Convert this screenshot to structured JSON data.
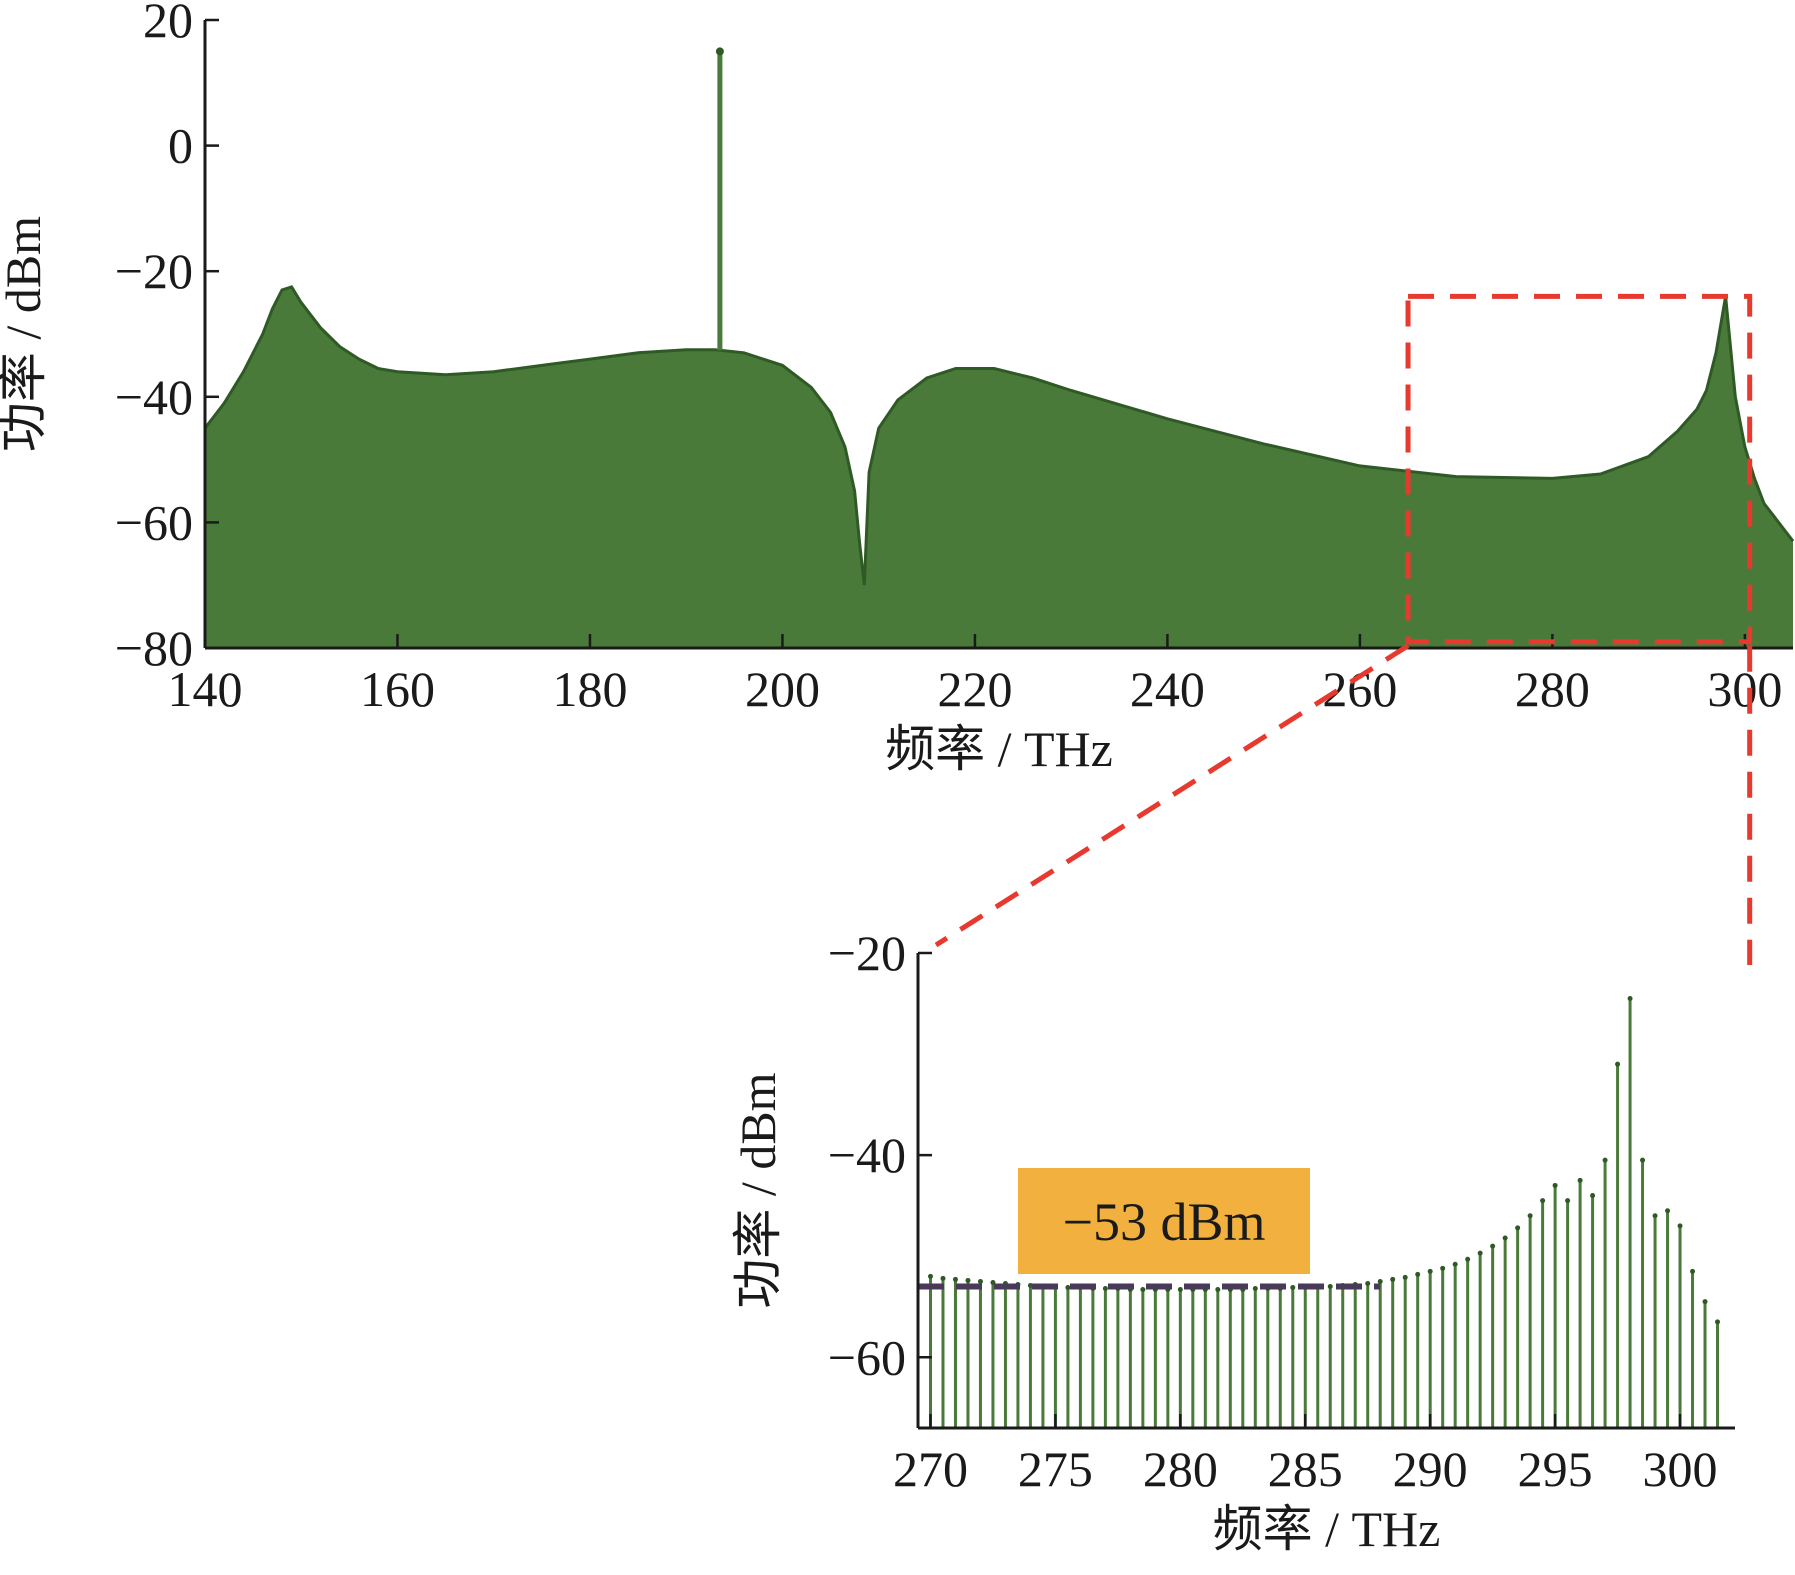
{
  "colors": {
    "spectrum_fill": "#4a7a3a",
    "spectrum_line": "#2f5a26",
    "zoom_box": "#e8392f",
    "annotation_bg": "#f2b03f",
    "threshold_line": "#4a3a5a",
    "axis": "#1a1a1a"
  },
  "chart_data": [
    {
      "type": "area",
      "xlabel": "频率 / THz",
      "ylabel": "功率 / dBm",
      "xlim": [
        140,
        305
      ],
      "ylim": [
        -80,
        20
      ],
      "xticks": [
        "140",
        "160",
        "180",
        "200",
        "220",
        "240",
        "260",
        "280",
        "300"
      ],
      "yticks": [
        "20",
        "0",
        "−20",
        "−40",
        "−60",
        "−80"
      ],
      "xtick_values": [
        140,
        160,
        180,
        200,
        220,
        240,
        260,
        280,
        300
      ],
      "ytick_values": [
        20,
        0,
        -20,
        -40,
        -60,
        -80
      ],
      "grid": false,
      "series": [
        {
          "envelope": {
            "x": [
              140,
              142,
              144,
              146,
              147,
              148,
              149,
              150,
              152,
              154,
              156,
              158,
              160,
              165,
              170,
              175,
              180,
              185,
              190,
              193,
              196,
              200,
              203,
              205,
              206.5,
              207.5,
              208,
              208.5,
              209,
              210,
              212,
              215,
              218,
              222,
              226,
              230,
              240,
              250,
              260,
              270,
              280,
              285,
              290,
              293,
              295,
              296,
              297,
              298,
              299,
              300,
              301,
              302,
              303,
              304,
              305
            ],
            "y": [
              -45,
              -41,
              -36,
              -30,
              -26,
              -23,
              -22.5,
              -25,
              -29,
              -32,
              -34,
              -35.5,
              -36,
              -36.5,
              -36,
              -35,
              -34,
              -33,
              -32.5,
              -32.5,
              -33,
              -35,
              -38.5,
              -42.5,
              -48,
              -55,
              -63,
              -70,
              -52,
              -45,
              -40.5,
              -37,
              -35.5,
              -35.5,
              -37,
              -39,
              -43.5,
              -47.5,
              -51,
              -52.7,
              -53,
              -52.3,
              -49.5,
              -45.5,
              -42,
              -39,
              -33,
              -24,
              -40,
              -48,
              -53,
              -57,
              -59,
              -61,
              -63
            ]
          },
          "carrier": {
            "x": 193.5,
            "y": 15
          },
          "dip": {
            "x": 208.5,
            "y": -70
          }
        }
      ]
    },
    {
      "type": "bar",
      "xlabel": "频率 / THz",
      "ylabel": "功率 / dBm",
      "xlim": [
        269.5,
        302.2
      ],
      "ylim": [
        -67,
        -20
      ],
      "xticks": [
        "270",
        "275",
        "280",
        "285",
        "290",
        "295",
        "300"
      ],
      "yticks": [
        "−20",
        "−40",
        "−60"
      ],
      "xtick_values": [
        270,
        275,
        280,
        285,
        290,
        295,
        300
      ],
      "ytick_values": [
        -20,
        -40,
        -60
      ],
      "grid": false,
      "series": [
        {
          "x": [
            270.0,
            270.5,
            271.0,
            271.5,
            272.0,
            272.5,
            273.0,
            273.5,
            274.0,
            274.5,
            275.0,
            275.5,
            276.0,
            276.5,
            277.0,
            277.5,
            278.0,
            278.5,
            279.0,
            279.5,
            280.0,
            280.5,
            281.0,
            281.5,
            282.0,
            282.5,
            283.0,
            283.5,
            284.0,
            284.5,
            285.0,
            285.5,
            286.0,
            286.5,
            287.0,
            287.5,
            288.0,
            288.5,
            289.0,
            289.5,
            290.0,
            290.5,
            291.0,
            291.5,
            292.0,
            292.5,
            293.0,
            293.5,
            294.0,
            294.5,
            295.0,
            295.5,
            296.0,
            296.5,
            297.0,
            297.5,
            298.0,
            298.5,
            299.0,
            299.5,
            300.0,
            300.5,
            301.0,
            301.5
          ],
          "values": [
            -52,
            -52.2,
            -52.3,
            -52.4,
            -52.5,
            -52.6,
            -52.7,
            -52.8,
            -52.9,
            -53,
            -53,
            -53.1,
            -53.1,
            -53.2,
            -53.2,
            -53.2,
            -53.3,
            -53.3,
            -53.3,
            -53.3,
            -53.3,
            -53.3,
            -53.3,
            -53.3,
            -53.3,
            -53.3,
            -53.2,
            -53.2,
            -53.2,
            -53.1,
            -53.1,
            -53,
            -53,
            -52.9,
            -52.8,
            -52.7,
            -52.5,
            -52.3,
            -52.1,
            -51.8,
            -51.5,
            -51.2,
            -50.8,
            -50.3,
            -49.7,
            -49,
            -48.2,
            -47.2,
            -46,
            -44.5,
            -43,
            -44.5,
            -42.5,
            -44,
            -40.5,
            -31,
            -24.5,
            -40.5,
            -46,
            -45.5,
            -47,
            -51.5,
            -54.5,
            -56.5
          ]
        }
      ],
      "annotations": [
        {
          "text": "−53 dBm",
          "threshold": -53,
          "x_from": 269.5,
          "x_to": 288.0
        }
      ]
    }
  ]
}
